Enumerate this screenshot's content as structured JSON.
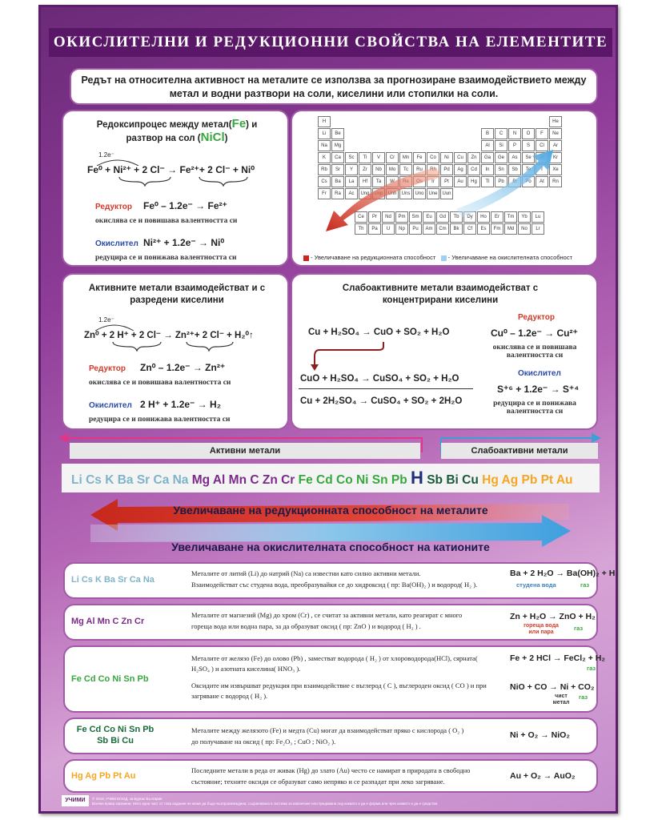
{
  "title": "ОКИСЛИТЕЛНИ И РЕДУКЦИОННИ СВОЙСТВА НА ЕЛЕМЕНТИТЕ",
  "intro": "Редът на относителна активност на металите се използва за прогнозиране взаимодействието между метал и водни разтвори на соли, киселини или стопилки на соли.",
  "panel1": {
    "title_a": "Редоксипроцес между метал(",
    "title_fe": "Fe",
    "title_b": ") и",
    "title_c": "разтвор на сол (",
    "title_nicl": "NiCl",
    "title_d": ")",
    "electrons": "1.2e⁻",
    "equation": "Fe⁰ + Ni²⁺ + 2 Cl⁻ → Fe²⁺+ 2 Cl⁻ + Ni⁰",
    "reductor_label": "Редуктор",
    "reductor_eq": "Fe⁰ – 1.2e⁻ → Fe²⁺",
    "reductor_note": "окислява се и повишава валентността си",
    "oxidizer_label": "Окислител",
    "oxidizer_eq": "Ni²⁺ + 1.2e⁻ → Ni⁰",
    "oxidizer_note": "редуцира се и понижава валентността си"
  },
  "panel2": {
    "legend_red": "- Увеличаване на редукционната способност",
    "legend_blue": "- Увеличаване на окислителната способност",
    "row1": [
      "H",
      "",
      "",
      "",
      "",
      "",
      "",
      "",
      "",
      "",
      "",
      "",
      "",
      "",
      "",
      "",
      "",
      "He"
    ],
    "row2": [
      "Li",
      "Be",
      "",
      "",
      "",
      "",
      "",
      "",
      "",
      "",
      "",
      "",
      "B",
      "C",
      "N",
      "O",
      "F",
      "Ne"
    ],
    "row3": [
      "Na",
      "Mg",
      "",
      "",
      "",
      "",
      "",
      "",
      "",
      "",
      "",
      "",
      "Al",
      "Si",
      "P",
      "S",
      "Cl",
      "Ar"
    ],
    "row4": [
      "K",
      "Ca",
      "Sc",
      "Ti",
      "V",
      "Cr",
      "Mn",
      "Fe",
      "Co",
      "Ni",
      "Cu",
      "Zn",
      "Ga",
      "Ge",
      "As",
      "Se",
      "Br",
      "Kr"
    ],
    "row5": [
      "Rb",
      "Sr",
      "Y",
      "Zr",
      "Nb",
      "Mo",
      "Tc",
      "Ru",
      "Rh",
      "Pd",
      "Ag",
      "Cd",
      "In",
      "Sn",
      "Sb",
      "Te",
      "I",
      "Xe"
    ],
    "row6": [
      "Cs",
      "Ba",
      "La",
      "Hf",
      "Ta",
      "W",
      "Re",
      "Os",
      "Ir",
      "Pt",
      "Au",
      "Hg",
      "Tl",
      "Pb",
      "Bi",
      "Po",
      "At",
      "Rn"
    ],
    "row7": [
      "Fr",
      "Ra",
      "Ac",
      "Unq",
      "Unp",
      "Unh",
      "Uns",
      "Uno",
      "Une",
      "Uun"
    ],
    "lanth": [
      "Ce",
      "Pr",
      "Nd",
      "Pm",
      "Sm",
      "Eu",
      "Gd",
      "Tb",
      "Dy",
      "Ho",
      "Er",
      "Tm",
      "Yb",
      "Lu"
    ],
    "actin": [
      "Th",
      "Pa",
      "U",
      "Np",
      "Pu",
      "Am",
      "Cm",
      "Bk",
      "Cf",
      "Es",
      "Fm",
      "Md",
      "No",
      "Lr"
    ]
  },
  "panel3": {
    "title": "Активните метали взаимодействат и с разредени киселини",
    "electrons": "1.2e⁻",
    "equation": "Zn⁰ + 2 H⁺ + 2 Cl⁻ → Zn²⁺+ 2 Cl⁻ + H₂⁰↑",
    "reductor_label": "Редуктор",
    "reductor_eq": "Zn⁰ – 1.2e⁻ → Zn²⁺",
    "reductor_note": "окислява се и повишава валентността си",
    "oxidizer_label": "Окислител",
    "oxidizer_eq": "2 H⁺ + 1.2e⁻ → H₂",
    "oxidizer_note": "редуцира се и понижава валентността си"
  },
  "panel4": {
    "title": "Слабоактивните метали взаимодействат с концентрирани киселини",
    "eq1": "Cu + H₂SO₄ → CuO + SO₂ + H₂O",
    "eq2": "CuO + H₂SO₄ → CuSO₄ + SO₂ + H₂O",
    "eq3": "Cu + 2H₂SO₄ → CuSO₄ + SO₂ + 2H₂O",
    "reductor_label": "Редуктор",
    "reductor_eq": "Cu⁰ – 1.2e⁻ → Cu²⁺",
    "reductor_note": "окислява се и повишава валентността си",
    "oxidizer_label": "Окислител",
    "oxidizer_eq": "S⁺⁶ + 1.2e⁻ → S⁺⁴",
    "oxidizer_note": "редуцира се и понижава валентността си"
  },
  "series": {
    "active_label": "Активни метали",
    "weak_label": "Слабоактивни метали",
    "g1": "Li Cs K Ba Sr Ca Na",
    "g2": "Mg Al Mn C Zn Cr",
    "g3": "Fe Cd Co Ni Sn Pb",
    "h": "H",
    "g4": "Sb Bi Cu",
    "g5": "Hg Ag Pb Pt Au",
    "arrow_red": "Увеличаване на редукционната способност на металите",
    "arrow_blue": "Увеличаване на окислителната способност на катионите"
  },
  "rows": [
    {
      "label": "Li Cs K Ba Sr Ca Na",
      "text1": "Металите от литий (Li) до натрий (Na) са известни като силно активни метали.",
      "text2": "Взаимодействат със студена вода, преобразувайки се до хидроксид ( пр: Ba(OH)₂ ) и водород( H₂ ).",
      "eq1": "Ba + 2 H₂O → Ba(OH)₂ + H₂",
      "eq1_note": "студена вода",
      "eq1_note2": "газ",
      "eq2": ""
    },
    {
      "label": "Mg Al Mn C Zn Cr",
      "text1": "Металите от магнезий (Mg) до хром (Cr) , се считат за активни метали, като реагират с много",
      "text2": "гореща вода или водна пара, за да образуват оксид ( пр: ZnO ) и водород ( H₂ ) .",
      "eq1": "Zn + H₂O → ZnO + H₂",
      "eq1_note": "гореща вода или пара",
      "eq1_note2": "газ",
      "eq2": ""
    },
    {
      "label": "Fe Cd Co Ni Sn Pb",
      "text1": "Металите от желязо (Fe) до олово (Pb) , заместват водорода ( H₂ ) от хлороводорода(HCl), сярната( H₂SO₄ ) и азотната киселина( HNO₃ ).",
      "text2": "Оксидите им извършват редукция при взаимодействие с въглерод ( C ), въглероден оксид ( CO ) и при загряване с водород ( H₂ ).",
      "eq1": "Fe + 2 HCl → FeCl₂ + H₂",
      "eq1_note": "газ",
      "eq1_note2": "",
      "eq2": "NiO + CO → Ni + CO₂",
      "eq2_note": "чист метал",
      "eq2_note2": "газ"
    },
    {
      "label": "Fe Cd Co Ni Sn Pb Sb Bi Cu",
      "text1": "Металите между желязото (Fe) и медта (Cu) могат да взаимодействат пряко с кислорода ( O₂ )",
      "text2": "до получаване на оксид ( пр: Fe₂O₃ ; CuO ; NiO₂ ).",
      "eq1": "Ni + O₂ → NiO₂",
      "eq1_note": "",
      "eq1_note2": "",
      "eq2": ""
    },
    {
      "label": "Hg Ag Pb Pt Au",
      "text1": "Последните метали в реда от живак (Hg) до злато (Au) често се намират в природата в свободно",
      "text2": "състояние; техните оксиди се образуват само непряко и се разпадат при леко загряване.",
      "eq1": "Au + O₂ → AuO₂",
      "eq1_note": "",
      "eq1_note2": "",
      "eq2": ""
    }
  ],
  "footer": {
    "logo": "УЧИМИ",
    "line1": "© 2018, УЧИМ ЕООД, за Бургас България",
    "line2": "Всички права запазени. Нито една част от това издание не може да бъде възпроизвеждана, съхранявана в система за извличане или предавана под каквато и да е форма или чрез каквито и да е средства."
  },
  "colors": {
    "accent": "#5a1768",
    "red": "#d43a2a",
    "blue": "#4fa7e0",
    "green": "#36a83e",
    "orange": "#f5a623"
  }
}
